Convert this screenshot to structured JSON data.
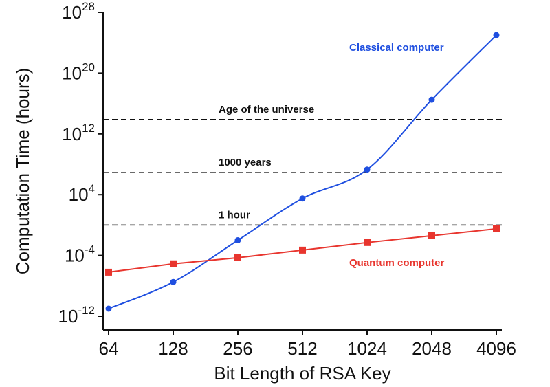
{
  "chart_data": {
    "type": "line",
    "x_scale": "log2",
    "y_scale": "log10",
    "xlabel": "Bit Length of RSA Key",
    "ylabel": "Computation Time (hours)",
    "x": [
      64,
      128,
      256,
      512,
      1024,
      2048,
      4096
    ],
    "x_tick_labels": [
      "64",
      "128",
      "256",
      "512",
      "1024",
      "2048",
      "4096"
    ],
    "ylim_exponent": [
      -12,
      28
    ],
    "y_ticks": [
      {
        "base": "10",
        "exp": "-12"
      },
      {
        "base": "10",
        "exp": "-4"
      },
      {
        "base": "10",
        "exp": "4"
      },
      {
        "base": "10",
        "exp": "12"
      },
      {
        "base": "10",
        "exp": "20"
      },
      {
        "base": "10",
        "exp": "28"
      }
    ],
    "series": [
      {
        "name": "Classical computer",
        "color": "#1f4fe0",
        "marker": "circle",
        "log10_values": [
          -11.0,
          -7.5,
          -2.0,
          3.5,
          7.3,
          16.5,
          25.0
        ]
      },
      {
        "name": "Quantum computer",
        "color": "#e8352e",
        "marker": "square",
        "log10_values": [
          -6.2,
          -5.1,
          -4.3,
          -3.3,
          -2.3,
          -1.4,
          -0.5
        ]
      }
    ],
    "reference_lines": [
      {
        "label": "Age of the universe",
        "log10_value": 13.9
      },
      {
        "label": "1000 years",
        "log10_value": 6.9
      },
      {
        "label": "1 hour",
        "log10_value": 0.0
      }
    ],
    "grid": false
  }
}
